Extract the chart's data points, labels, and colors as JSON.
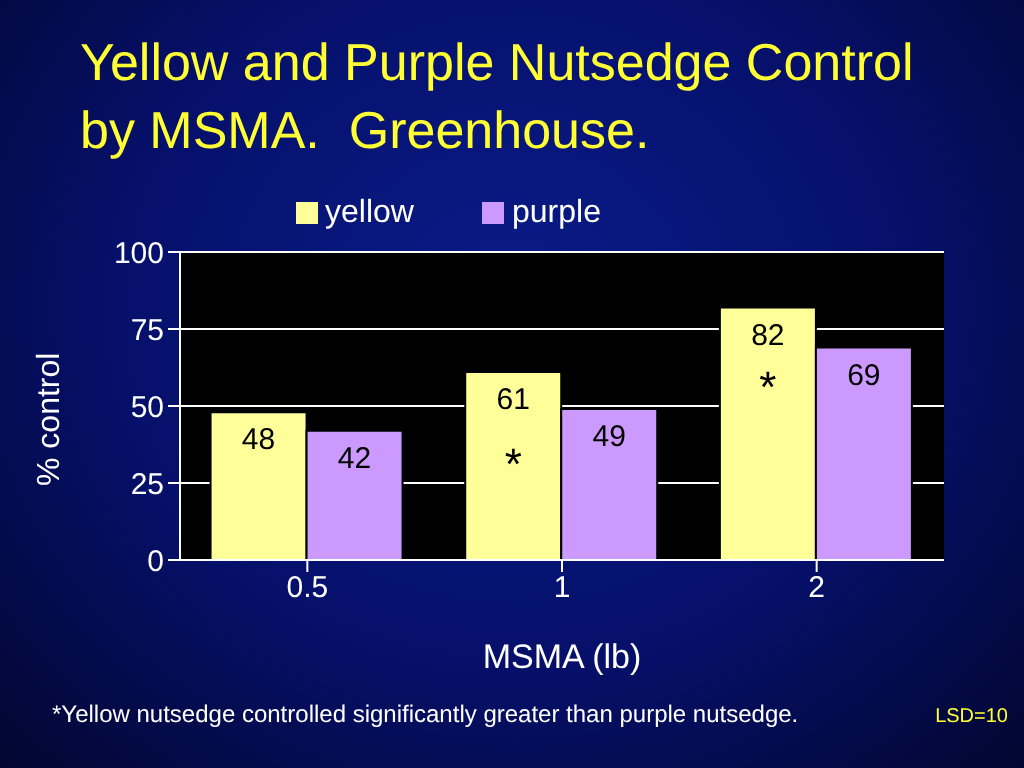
{
  "chart_data": {
    "type": "bar",
    "title": "Yellow and Purple Nutsedge Control by MSMA.  Greenhouse.",
    "xlabel": "MSMA (lb)",
    "ylabel": "% control",
    "categories": [
      "0.5",
      "1",
      "2"
    ],
    "series": [
      {
        "name": "yellow",
        "color": "#ffff99",
        "values": [
          48,
          61,
          82
        ]
      },
      {
        "name": "purple",
        "color": "#cc99ff",
        "values": [
          42,
          49,
          69
        ]
      }
    ],
    "ylim": [
      0,
      100
    ],
    "yticks": [
      0,
      25,
      50,
      75,
      100
    ],
    "grid": "y",
    "legend": "top",
    "data_labels": true,
    "annotations": [
      {
        "text": "*",
        "x": "1",
        "y": 30
      },
      {
        "text": "*",
        "x": "2",
        "y": 55
      },
      "*Yellow nutsedge controlled significantly greater than purple nutsedge.",
      "LSD=10"
    ]
  }
}
